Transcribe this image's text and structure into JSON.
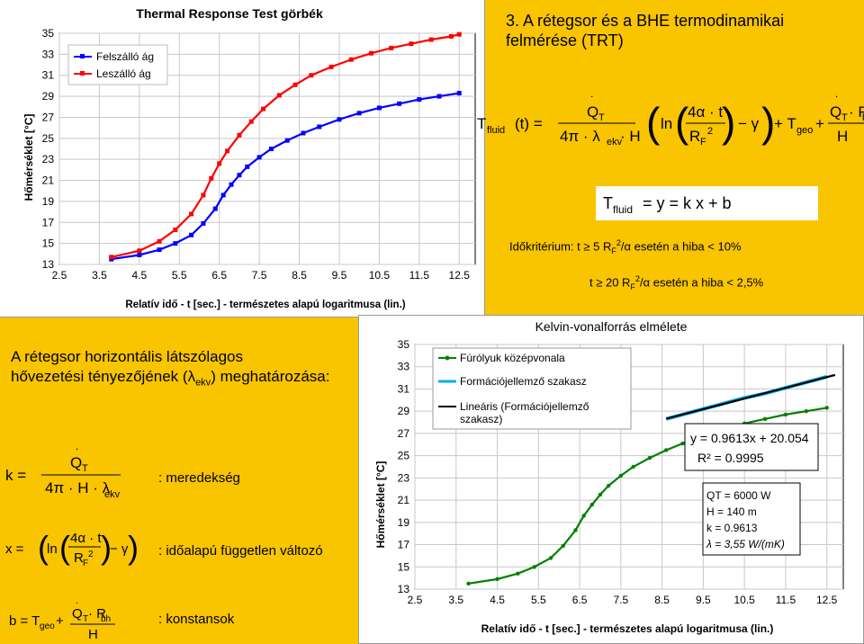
{
  "tl_chart": {
    "title": "Thermal Response Test görbék",
    "ylabel": "Hőmérséklet [°C]",
    "xlabel": "Relatív idő - t [sec.] - természetes alapú logaritmusa (lin.)",
    "legend": [
      "Felszálló ág",
      "Leszálló ág"
    ]
  },
  "br_chart": {
    "title": "Kelvin-vonalforrás elmélete",
    "ylabel": "Hőmérséklet [°C]",
    "xlabel": "Relatív idő - t [sec.] - természetes alapú logaritmusa (lin.)",
    "legend": [
      "Fúrólyuk középvonala",
      "Formációjellemző szakasz",
      "Lineáris (Formációjellemző",
      "szakasz)"
    ],
    "regression": [
      "y = 0.9613x + 20.054",
      "R² = 0.9995"
    ],
    "params": [
      "QT = 6000 W",
      "H = 140 m",
      "k = 0.9613",
      "λ = 3,55 W/(mK)"
    ]
  },
  "slide_title": [
    "3. A rétegsor és a BHE termodinamikai",
    "felmérése (TRT)"
  ],
  "criteria": {
    "line1_prefix": "Időkritérium: t",
    "line1_rest": "5 R",
    "line1_tail": "/α esetén a hiba < 10%",
    "line2_prefix": "t",
    "line2_rest": "20 R",
    "line2_tail": "/α esetén a hiba < 2,5%",
    "sub": "F",
    "sup": "2"
  },
  "left_heading": [
    "A rétegsor horizontális látszólagos",
    "hővezetési tényezőjének (λ",
    "ekv",
    ") meghatározása:"
  ],
  "descriptions": {
    "k": ": meredekség",
    "x": ": időalapú független változó",
    "b": ": konstansok"
  },
  "colors": {
    "background": "#f9c400",
    "blue": "#0000ff",
    "red": "#ff0000",
    "green": "#008000",
    "regression": "#000000"
  },
  "chart_data": [
    {
      "type": "line",
      "title": "Thermal Response Test görbék",
      "xlabel": "Relatív idő - t [sec.] - természetes alapú logaritmusa (lin.)",
      "ylabel": "Hőmérséklet [°C]",
      "x_ticks": [
        "2.5",
        "3.5",
        "4.5",
        "5.5",
        "6.5",
        "7.5",
        "8.5",
        "9.5",
        "10.5",
        "11.5",
        "12.5"
      ],
      "y_ticks": [
        "13",
        "15",
        "17",
        "19",
        "21",
        "23",
        "25",
        "27",
        "29",
        "31",
        "33",
        "35"
      ],
      "xlim": [
        2.5,
        12.9
      ],
      "ylim": [
        13,
        35
      ],
      "series": [
        {
          "name": "Felszálló ág",
          "color": "#0000ff",
          "x": [
            3.8,
            4.5,
            5.0,
            5.4,
            5.8,
            6.1,
            6.4,
            6.6,
            6.8,
            7.0,
            7.2,
            7.5,
            7.8,
            8.2,
            8.6,
            9.0,
            9.5,
            10.0,
            10.5,
            11.0,
            11.5,
            12.0,
            12.5
          ],
          "y": [
            13.5,
            13.9,
            14.4,
            15.0,
            15.8,
            16.9,
            18.3,
            19.6,
            20.6,
            21.5,
            22.3,
            23.2,
            24.0,
            24.8,
            25.5,
            26.1,
            26.8,
            27.4,
            27.9,
            28.3,
            28.7,
            29.0,
            29.3
          ]
        },
        {
          "name": "Leszálló ág",
          "color": "#ff0000",
          "x": [
            3.8,
            4.5,
            5.0,
            5.4,
            5.8,
            6.1,
            6.3,
            6.5,
            6.7,
            7.0,
            7.3,
            7.6,
            8.0,
            8.4,
            8.8,
            9.3,
            9.8,
            10.3,
            10.8,
            11.3,
            11.8,
            12.3,
            12.5
          ],
          "y": [
            13.7,
            14.3,
            15.2,
            16.3,
            17.8,
            19.6,
            21.2,
            22.6,
            23.8,
            25.3,
            26.6,
            27.8,
            29.1,
            30.1,
            31.0,
            31.8,
            32.5,
            33.1,
            33.6,
            34.0,
            34.4,
            34.7,
            34.9
          ]
        }
      ]
    },
    {
      "type": "line",
      "title": "Kelvin-vonalforrás elmélete",
      "xlabel": "Relatív idő - t [sec.] - természetes alapú logaritmusa (lin.)",
      "ylabel": "Hőmérséklet [°C]",
      "x_ticks": [
        "2.5",
        "3.5",
        "4.5",
        "5.5",
        "6.5",
        "7.5",
        "8.5",
        "9.5",
        "10.5",
        "11.5",
        "12.5"
      ],
      "y_ticks": [
        "13",
        "15",
        "17",
        "19",
        "21",
        "23",
        "25",
        "27",
        "29",
        "31",
        "33",
        "35"
      ],
      "xlim": [
        2.5,
        12.9
      ],
      "ylim": [
        13,
        35
      ],
      "series": [
        {
          "name": "Fúrólyuk középvonala",
          "color": "#008000",
          "x": [
            3.8,
            4.5,
            5.0,
            5.4,
            5.8,
            6.1,
            6.4,
            6.6,
            6.8,
            7.0,
            7.2,
            7.5,
            7.8,
            8.2,
            8.6,
            9.0,
            9.5,
            10.0,
            10.5,
            11.0,
            11.5,
            12.0,
            12.5
          ],
          "y": [
            13.5,
            13.9,
            14.4,
            15.0,
            15.8,
            16.9,
            18.3,
            19.6,
            20.6,
            21.5,
            22.3,
            23.2,
            24.0,
            24.8,
            25.5,
            26.1,
            26.8,
            27.4,
            27.9,
            28.3,
            28.7,
            29.0,
            29.3
          ]
        },
        {
          "name": "Formációjellemző szakasz",
          "color": "#00b0f0",
          "x": [
            8.6,
            9.0,
            9.5,
            10.0,
            10.5,
            11.0,
            11.5,
            12.0,
            12.5
          ],
          "y": [
            28.3,
            28.7,
            29.2,
            29.7,
            30.2,
            30.6,
            31.1,
            31.6,
            32.1
          ]
        },
        {
          "name": "Lineáris (Formációjellemző szakasz)",
          "color": "#000000",
          "x": [
            8.6,
            12.7
          ],
          "y": [
            28.32,
            32.26
          ]
        }
      ]
    }
  ]
}
